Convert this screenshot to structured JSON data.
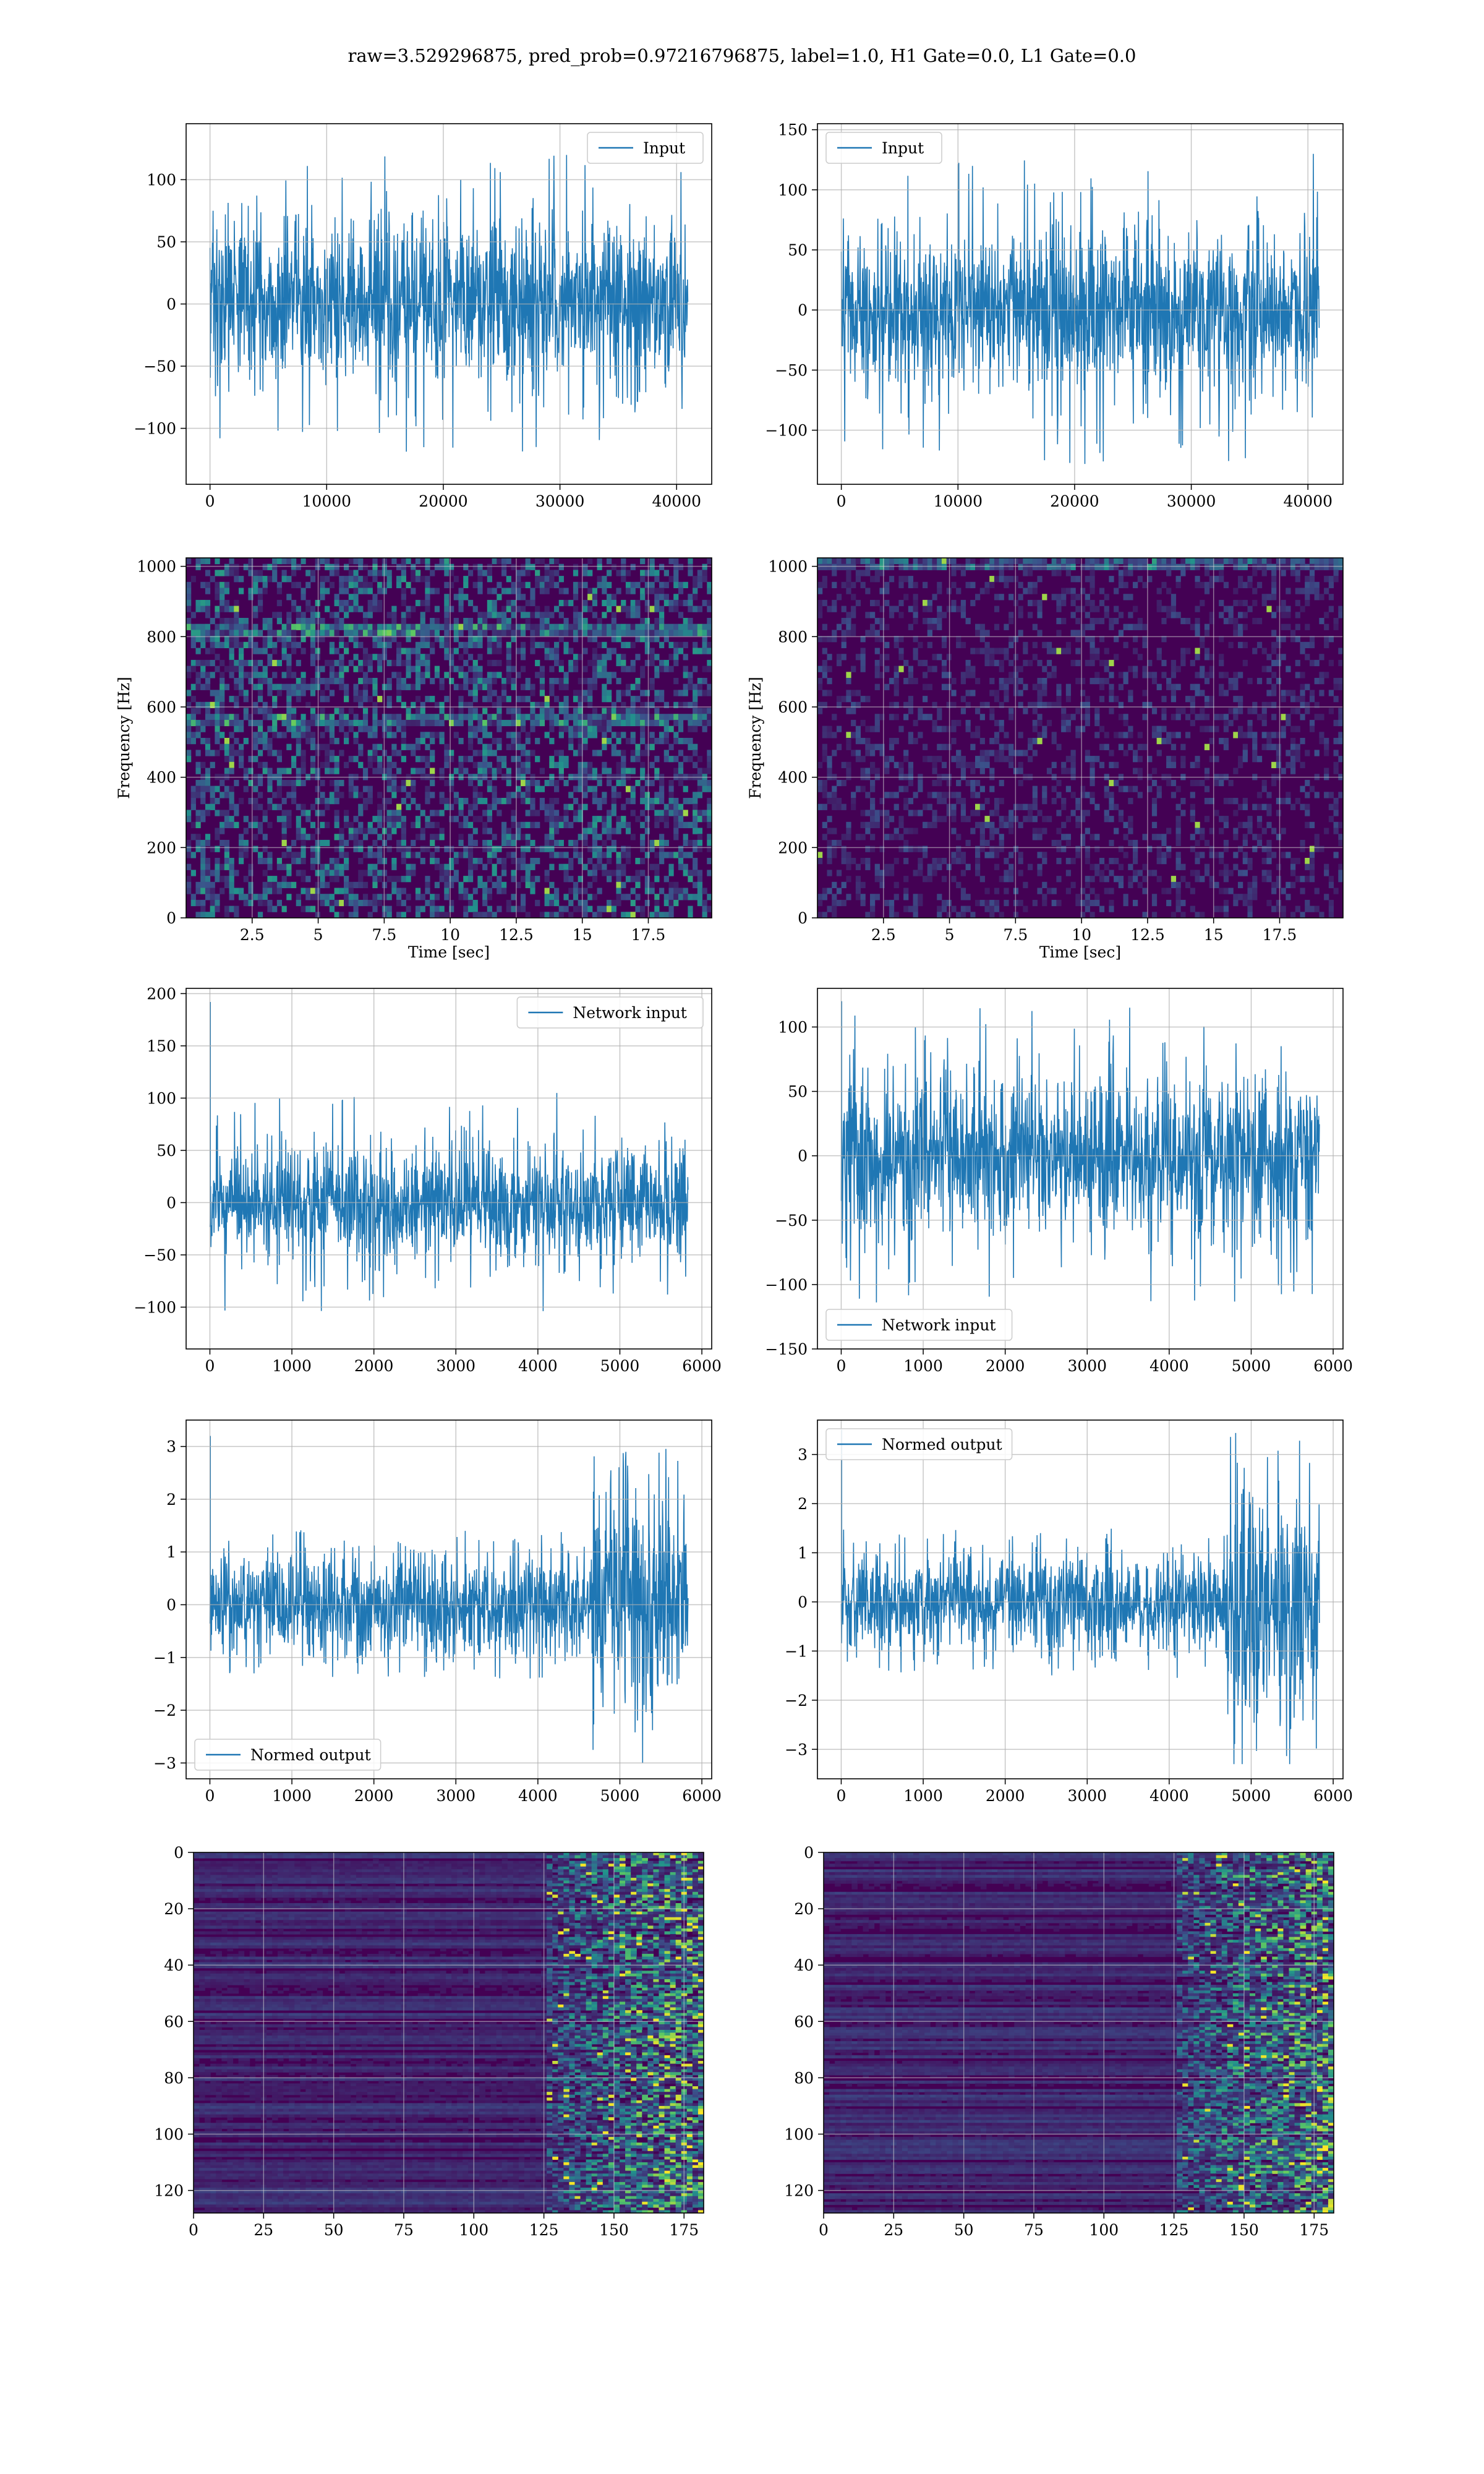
{
  "figure": {
    "suptitle": "raw=3.529296875, pred_prob=0.97216796875, label=1.0, H1 Gate=0.0, L1 Gate=0.0"
  },
  "colors": {
    "line": "#1f77b4",
    "grid": "#b0b0b0",
    "viridis_low": "#440154",
    "viridis_mid": "#21918c",
    "viridis_high": "#fde725"
  },
  "chart_data": [
    {
      "type": "line",
      "legend": "Input",
      "legend_loc": "upper right",
      "grid": true,
      "xlim": [
        -2048,
        43008
      ],
      "ylim": [
        -145,
        145
      ],
      "xticks": [
        0,
        10000,
        20000,
        30000,
        40000
      ],
      "yticks": [
        -100,
        -50,
        0,
        50,
        100
      ],
      "x_range": [
        0,
        40960
      ],
      "amplitude": 32,
      "peak": 120,
      "y_extremes": [
        -127,
        122
      ],
      "xlabel": "",
      "ylabel": ""
    },
    {
      "type": "line",
      "legend": "Input",
      "legend_loc": "upper left",
      "grid": true,
      "xlim": [
        -2048,
        43008
      ],
      "ylim": [
        -145,
        155
      ],
      "xticks": [
        0,
        10000,
        20000,
        30000,
        40000
      ],
      "yticks": [
        -100,
        -50,
        0,
        50,
        100,
        150
      ],
      "x_range": [
        0,
        40960
      ],
      "amplitude": 32,
      "peak": 130,
      "y_extremes": [
        -130,
        141
      ],
      "xlabel": "",
      "ylabel": ""
    },
    {
      "type": "heatmap",
      "grid": true,
      "xlim": [
        0,
        19.9
      ],
      "ylim": [
        0,
        1024
      ],
      "xticks": [
        2.5,
        5.0,
        7.5,
        10.0,
        12.5,
        15.0,
        17.5
      ],
      "yticks": [
        0,
        200,
        400,
        600,
        800,
        1000
      ],
      "xlabel": "Time [sec]",
      "ylabel": "Frequency [Hz]",
      "bright_bands_hz": [
        560,
        820
      ],
      "brightness": 0.55
    },
    {
      "type": "heatmap",
      "grid": true,
      "xlim": [
        0,
        19.9
      ],
      "ylim": [
        0,
        1024
      ],
      "xticks": [
        2.5,
        5.0,
        7.5,
        10.0,
        12.5,
        15.0,
        17.5
      ],
      "yticks": [
        0,
        200,
        400,
        600,
        800,
        1000
      ],
      "xlabel": "Time [sec]",
      "ylabel": "Frequency [Hz]",
      "bright_bands_hz": [
        1010
      ],
      "brightness": 0.25
    },
    {
      "type": "line",
      "legend": "Network input",
      "legend_loc": "upper right",
      "grid": true,
      "xlim": [
        -290,
        6120
      ],
      "ylim": [
        -140,
        205
      ],
      "xticks": [
        0,
        1000,
        2000,
        3000,
        4000,
        5000,
        6000
      ],
      "yticks": [
        -100,
        -50,
        0,
        50,
        100,
        150,
        200
      ],
      "x_range": [
        0,
        5832
      ],
      "amplitude": 25,
      "peak": 105,
      "y_extremes": [
        -125,
        192
      ],
      "xlabel": "",
      "ylabel": ""
    },
    {
      "type": "line",
      "legend": "Network input",
      "legend_loc": "lower left",
      "grid": true,
      "xlim": [
        -290,
        6120
      ],
      "ylim": [
        -150,
        130
      ],
      "xticks": [
        0,
        1000,
        2000,
        3000,
        4000,
        5000,
        6000
      ],
      "yticks": [
        -150,
        -100,
        -50,
        0,
        50,
        100
      ],
      "x_range": [
        0,
        5832
      ],
      "amplitude": 30,
      "peak": 115,
      "y_extremes": [
        -138,
        120
      ],
      "xlabel": "",
      "ylabel": ""
    },
    {
      "type": "line",
      "legend": "Normed output",
      "legend_loc": "lower left",
      "grid": true,
      "xlim": [
        -290,
        6120
      ],
      "ylim": [
        -3.3,
        3.5
      ],
      "xticks": [
        0,
        1000,
        2000,
        3000,
        4000,
        5000,
        6000
      ],
      "yticks": [
        -3,
        -2,
        -1,
        0,
        1,
        2,
        3
      ],
      "x_range": [
        0,
        5832
      ],
      "amplitude": 0.45,
      "peak": 1.4,
      "burst_x": [
        4650,
        5832
      ],
      "burst_peak": 3.2,
      "y_extremes": [
        -3.0,
        3.2
      ],
      "xlabel": "",
      "ylabel": ""
    },
    {
      "type": "line",
      "legend": "Normed output",
      "legend_loc": "upper left",
      "grid": true,
      "xlim": [
        -290,
        6120
      ],
      "ylim": [
        -3.6,
        3.7
      ],
      "xticks": [
        0,
        1000,
        2000,
        3000,
        4000,
        5000,
        6000
      ],
      "yticks": [
        -3,
        -2,
        -1,
        0,
        1,
        2,
        3
      ],
      "x_range": [
        0,
        5832
      ],
      "amplitude": 0.45,
      "peak": 1.5,
      "burst_x": [
        4700,
        5832
      ],
      "burst_peak": 3.5,
      "y_extremes": [
        -3.3,
        3.5
      ],
      "xlabel": "",
      "ylabel": ""
    },
    {
      "type": "heatmap",
      "grid": true,
      "xlim": [
        0,
        182
      ],
      "ylim": [
        128,
        0
      ],
      "xticks": [
        0,
        25,
        50,
        75,
        100,
        125,
        150,
        175
      ],
      "yticks": [
        0,
        20,
        40,
        60,
        80,
        100,
        120
      ],
      "xlabel": "",
      "ylabel": "",
      "active_from_x": 125,
      "rows": 128
    },
    {
      "type": "heatmap",
      "grid": true,
      "xlim": [
        0,
        182
      ],
      "ylim": [
        128,
        0
      ],
      "xticks": [
        0,
        25,
        50,
        75,
        100,
        125,
        150,
        175
      ],
      "yticks": [
        0,
        20,
        40,
        60,
        80,
        100,
        120
      ],
      "xlabel": "",
      "ylabel": "",
      "active_from_x": 125,
      "rows": 128
    }
  ]
}
